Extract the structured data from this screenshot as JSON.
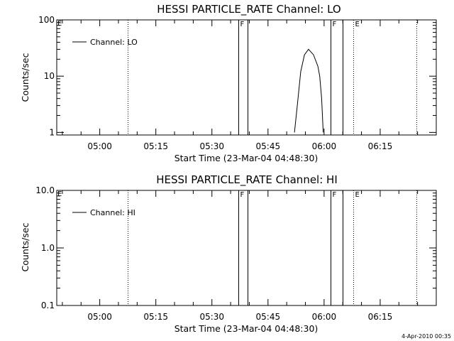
{
  "chart_data": [
    {
      "type": "line",
      "title": "HESSI PARTICLE_RATE Channel: LO",
      "xlabel": "Start Time (23-Mar-04 04:48:30)",
      "ylabel": "Counts/sec",
      "xlim": [
        "04:48:30",
        "06:30:00"
      ],
      "xticks": [
        "05:00",
        "05:15",
        "05:30",
        "05:45",
        "06:00",
        "06:15"
      ],
      "yscale": "log",
      "ylim": [
        0.9,
        100
      ],
      "yticks": [
        "1",
        "10",
        "100"
      ],
      "legend": {
        "placement": "top-left",
        "entries": [
          "Channel: LO"
        ]
      },
      "series": [
        {
          "name": "Channel: LO",
          "x": [
            "05:52:05",
            "05:52:50",
            "05:53:45",
            "05:54:45",
            "05:55:50",
            "05:57:10",
            "05:58:20",
            "05:58:50",
            "05:59:20",
            "05:59:35",
            "05:59:45"
          ],
          "y": [
            1.0,
            3.0,
            12.0,
            24.0,
            30.0,
            24.0,
            15.0,
            10.0,
            4.0,
            1.8,
            1.0
          ]
        }
      ],
      "markers": [
        {
          "time": "05:07:25",
          "style": "dotted",
          "label": ""
        },
        {
          "time": "05:37:00",
          "style": "solid",
          "label": "F"
        },
        {
          "time": "05:39:35",
          "style": "solid",
          "label": ""
        },
        {
          "time": "06:01:40",
          "style": "solid",
          "label": "F"
        },
        {
          "time": "06:04:55",
          "style": "solid",
          "label": ""
        },
        {
          "time": "06:07:45",
          "style": "dotted",
          "label": "E"
        },
        {
          "time": "06:24:40",
          "style": "dotted",
          "label": ""
        }
      ],
      "corner_label": "E"
    },
    {
      "type": "line",
      "title": "HESSI PARTICLE_RATE Channel: HI",
      "xlabel": "Start Time (23-Mar-04 04:48:30)",
      "ylabel": "Counts/sec",
      "xlim": [
        "04:48:30",
        "06:30:00"
      ],
      "xticks": [
        "05:00",
        "05:15",
        "05:30",
        "05:45",
        "06:00",
        "06:15"
      ],
      "yscale": "log",
      "ylim": [
        0.1,
        10
      ],
      "yticks": [
        "0.1",
        "1.0",
        "10.0"
      ],
      "legend": {
        "placement": "top-left",
        "entries": [
          "Channel: HI"
        ]
      },
      "series": [
        {
          "name": "Channel: HI",
          "x": [],
          "y": []
        }
      ],
      "markers": [
        {
          "time": "05:07:25",
          "style": "dotted",
          "label": ""
        },
        {
          "time": "05:37:00",
          "style": "solid",
          "label": "F"
        },
        {
          "time": "05:39:35",
          "style": "solid",
          "label": ""
        },
        {
          "time": "06:01:40",
          "style": "solid",
          "label": "F"
        },
        {
          "time": "06:04:55",
          "style": "solid",
          "label": ""
        },
        {
          "time": "06:07:45",
          "style": "dotted",
          "label": "E"
        },
        {
          "time": "06:24:40",
          "style": "dotted",
          "label": ""
        }
      ],
      "corner_label": "E"
    }
  ],
  "timestamp": "4-Apr-2010 00:35"
}
